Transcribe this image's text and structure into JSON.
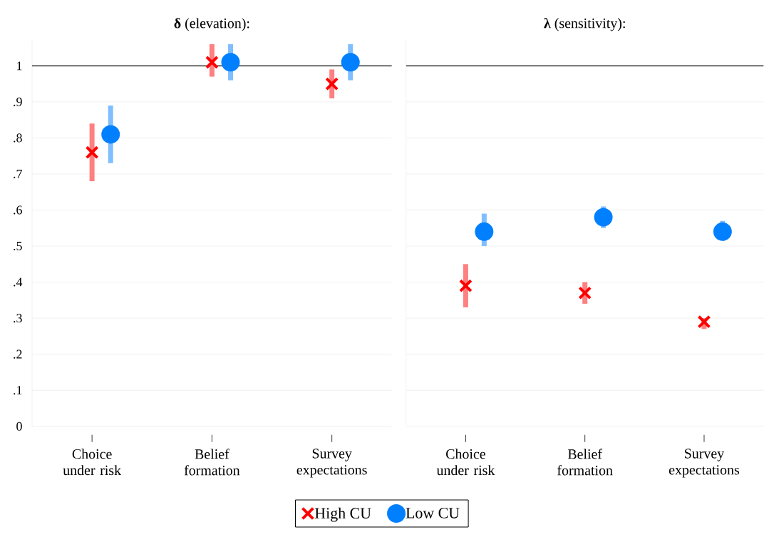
{
  "chart_data": [
    {
      "type": "scatter",
      "title": "**δ** (elevation):",
      "categories": [
        "Choice under risk",
        "Belief formation",
        "Survey expectations"
      ],
      "series": [
        {
          "name": "High CU",
          "color": "#ff0000",
          "marker": "cross",
          "values": [
            0.76,
            1.01,
            0.95
          ],
          "errors": [
            [
              0.68,
              0.84
            ],
            [
              0.97,
              1.06
            ],
            [
              0.91,
              0.99
            ]
          ]
        },
        {
          "name": "Low CU",
          "color": "#0080ff",
          "marker": "circle",
          "values": [
            0.81,
            1.01,
            1.01
          ],
          "errors": [
            [
              0.73,
              0.89
            ],
            [
              0.96,
              1.06
            ],
            [
              0.96,
              1.06
            ]
          ]
        }
      ],
      "ylim": [
        0,
        1.07
      ],
      "yticks": [
        0,
        {
          "value": 0.1,
          "label": ".1"
        },
        {
          "value": 0.2,
          "label": ".2"
        },
        {
          "value": 0.3,
          "label": ".3"
        },
        {
          "value": 0.4,
          "label": ".4"
        },
        {
          "value": 0.5,
          "label": ".5"
        },
        {
          "value": 0.6,
          "label": ".6"
        },
        {
          "value": 0.7,
          "label": ".7"
        },
        {
          "value": 0.8,
          "label": ".8"
        },
        {
          "value": 0.9,
          "label": ".9"
        },
        1
      ],
      "grid": "y",
      "legend": "bottom",
      "ref_lines": [
        {
          "axis": "y",
          "value": 1
        }
      ]
    },
    {
      "type": "scatter",
      "title": "**λ** (sensitivity):",
      "categories": [
        "Choice under risk",
        "Belief formation",
        "Survey expectations"
      ],
      "series": [
        {
          "color": "#ff0000",
          "marker": "cross",
          "values": [
            0.39,
            0.37,
            0.29
          ],
          "errors": [
            [
              0.33,
              0.45
            ],
            [
              0.34,
              0.4
            ],
            [
              0.27,
              0.3
            ]
          ]
        },
        {
          "color": "#0080ff",
          "marker": "circle",
          "values": [
            0.54,
            0.58,
            0.54
          ],
          "errors": [
            [
              0.5,
              0.59
            ],
            [
              0.55,
              0.61
            ],
            [
              0.52,
              0.57
            ]
          ]
        }
      ],
      "ylim": [
        0,
        1.07
      ],
      "yticks": [
        {
          "value": 0,
          "label": null
        },
        {
          "value": 0.1,
          "label": null
        },
        {
          "value": 0.2,
          "label": null
        },
        {
          "value": 0.3,
          "label": null
        },
        {
          "value": 0.4,
          "label": null
        },
        {
          "value": 0.5,
          "label": null
        },
        {
          "value": 0.6,
          "label": null
        },
        {
          "value": 0.7,
          "label": null
        },
        {
          "value": 0.8,
          "label": null
        },
        {
          "value": 0.9,
          "label": null
        },
        {
          "value": 1,
          "label": null
        }
      ],
      "grid": "y",
      "tick_labels": "x",
      "ref_lines": [
        {
          "axis": "y",
          "value": 1
        }
      ]
    }
  ]
}
